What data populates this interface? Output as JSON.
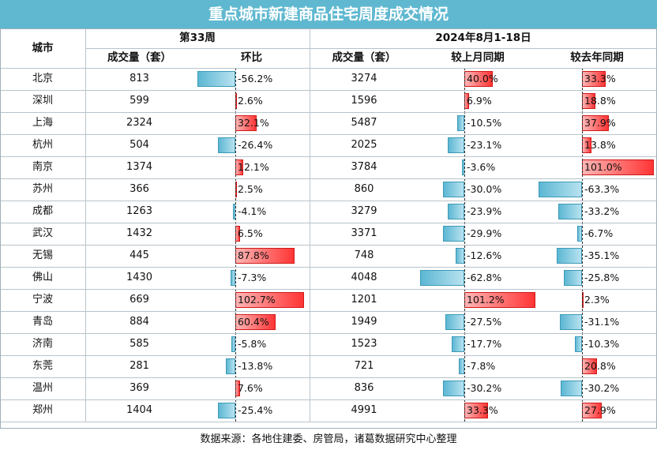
{
  "title": "重点城市新建商品住宅周度成交情况",
  "headers": {
    "city": "城市",
    "group1": "第33周",
    "group2": "2024年8月1-18日",
    "vol1": "成交量（套）",
    "wow": "环比",
    "vol2": "成交量（套）",
    "mom": "较上月同期",
    "yoy": "较去年同期"
  },
  "rows": [
    {
      "city": "北京",
      "vol33": "813",
      "wow": -56.2,
      "wow_label": "-56.2%",
      "vol_aug": "3274",
      "mom": 40.0,
      "mom_label": "40.0%",
      "yoy": 33.3,
      "yoy_label": "33.3%"
    },
    {
      "city": "深圳",
      "vol33": "599",
      "wow": 2.6,
      "wow_label": "2.6%",
      "vol_aug": "1596",
      "mom": 6.9,
      "mom_label": "6.9%",
      "yoy": 18.8,
      "yoy_label": "18.8%"
    },
    {
      "city": "上海",
      "vol33": "2324",
      "wow": 32.1,
      "wow_label": "32.1%",
      "vol_aug": "5487",
      "mom": -10.5,
      "mom_label": "-10.5%",
      "yoy": 37.9,
      "yoy_label": "37.9%"
    },
    {
      "city": "杭州",
      "vol33": "504",
      "wow": -26.4,
      "wow_label": "-26.4%",
      "vol_aug": "2025",
      "mom": -23.1,
      "mom_label": "-23.1%",
      "yoy": 13.8,
      "yoy_label": "13.8%"
    },
    {
      "city": "南京",
      "vol33": "1374",
      "wow": 12.1,
      "wow_label": "12.1%",
      "vol_aug": "3784",
      "mom": -3.6,
      "mom_label": "-3.6%",
      "yoy": 101.0,
      "yoy_label": "101.0%"
    },
    {
      "city": "苏州",
      "vol33": "366",
      "wow": 2.5,
      "wow_label": "2.5%",
      "vol_aug": "860",
      "mom": -30.0,
      "mom_label": "-30.0%",
      "yoy": -63.3,
      "yoy_label": "-63.3%"
    },
    {
      "city": "成都",
      "vol33": "1263",
      "wow": -4.1,
      "wow_label": "-4.1%",
      "vol_aug": "3279",
      "mom": -23.9,
      "mom_label": "-23.9%",
      "yoy": -33.2,
      "yoy_label": "-33.2%"
    },
    {
      "city": "武汉",
      "vol33": "1432",
      "wow": 6.5,
      "wow_label": "6.5%",
      "vol_aug": "3371",
      "mom": -29.9,
      "mom_label": "-29.9%",
      "yoy": -6.7,
      "yoy_label": "-6.7%"
    },
    {
      "city": "无锡",
      "vol33": "445",
      "wow": 87.8,
      "wow_label": "87.8%",
      "vol_aug": "748",
      "mom": -12.6,
      "mom_label": "-12.6%",
      "yoy": -35.1,
      "yoy_label": "-35.1%"
    },
    {
      "city": "佛山",
      "vol33": "1430",
      "wow": -7.3,
      "wow_label": "-7.3%",
      "vol_aug": "4048",
      "mom": -62.8,
      "mom_label": "-62.8%",
      "yoy": -25.8,
      "yoy_label": "-25.8%"
    },
    {
      "city": "宁波",
      "vol33": "669",
      "wow": 102.7,
      "wow_label": "102.7%",
      "vol_aug": "1201",
      "mom": 101.2,
      "mom_label": "101.2%",
      "yoy": 2.3,
      "yoy_label": "2.3%"
    },
    {
      "city": "青岛",
      "vol33": "884",
      "wow": 60.4,
      "wow_label": "60.4%",
      "vol_aug": "1949",
      "mom": -27.5,
      "mom_label": "-27.5%",
      "yoy": -31.1,
      "yoy_label": "-31.1%"
    },
    {
      "city": "济南",
      "vol33": "585",
      "wow": -5.8,
      "wow_label": "-5.8%",
      "vol_aug": "1523",
      "mom": -17.7,
      "mom_label": "-17.7%",
      "yoy": -10.3,
      "yoy_label": "-10.3%"
    },
    {
      "city": "东莞",
      "vol33": "281",
      "wow": -13.8,
      "wow_label": "-13.8%",
      "vol_aug": "721",
      "mom": -7.8,
      "mom_label": "-7.8%",
      "yoy": 20.8,
      "yoy_label": "20.8%"
    },
    {
      "city": "温州",
      "vol33": "369",
      "wow": 7.6,
      "wow_label": "7.6%",
      "vol_aug": "836",
      "mom": -30.2,
      "mom_label": "-30.2%",
      "yoy": -30.2,
      "yoy_label": "-30.2%"
    },
    {
      "city": "郑州",
      "vol33": "1404",
      "wow": -25.4,
      "wow_label": "-25.4%",
      "vol_aug": "4991",
      "mom": 33.3,
      "mom_label": "33.3%",
      "yoy": 27.9,
      "yoy_label": "27.9%"
    }
  ],
  "colors": {
    "positive": "#ff3535",
    "negative": "#5cb7d3",
    "header": "#5fb8d0"
  },
  "footer": "数据来源：各地住建委、房管局，诸葛数据研究中心整理"
}
